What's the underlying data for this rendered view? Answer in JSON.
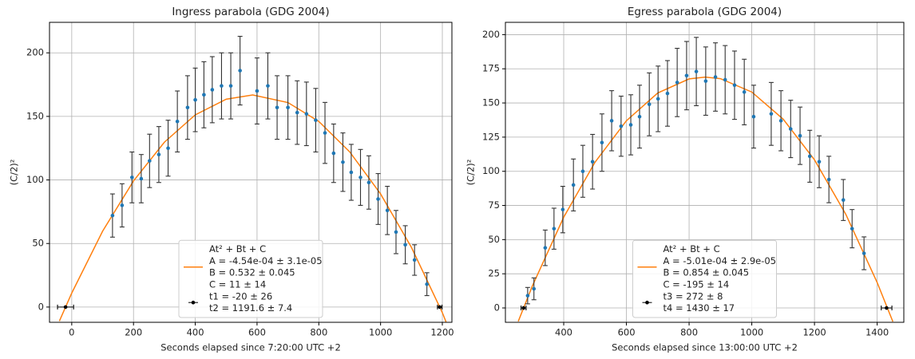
{
  "chart_data": [
    {
      "type": "errorbar",
      "title": "Ingress parabola (GDG 2004)",
      "xlabel": "Seconds elapsed since 7:20:00 UTC +2",
      "ylabel": "(C/2)²",
      "xlim": [
        -72,
        1231
      ],
      "ylim": [
        -12,
        224
      ],
      "xticks": [
        0,
        200,
        400,
        600,
        800,
        1000,
        1200
      ],
      "yticks": [
        0,
        50,
        100,
        150,
        200
      ],
      "grid": true,
      "legend": "lower center",
      "series": [
        {
          "name": [
            "At² + Bt + C",
            "A = -4.54e-04 ± 3.1e-05",
            "B = 0.532 ± 0.045",
            "C = 11 ± 14"
          ],
          "type": "line",
          "color": "#ff7f0e",
          "x": [
            -40,
            0,
            100,
            200,
            300,
            400,
            500,
            586,
            700,
            800,
            900,
            1000,
            1100,
            1200,
            1212
          ],
          "values": [
            -11,
            11,
            59.7,
            99.2,
            129.7,
            151.2,
            163.5,
            166.9,
            160.9,
            146,
            122.1,
            89,
            46.9,
            -4.4,
            -11.7
          ]
        },
        {
          "type": "errorbar",
          "color": "#1f77b4",
          "ecolor": "#333333",
          "x": [
            132,
            163,
            195,
            225,
            252,
            282,
            312,
            342,
            375,
            400,
            428,
            455,
            485,
            515,
            545,
            600,
            635,
            665,
            700,
            730,
            760,
            790,
            820,
            848,
            878,
            905,
            935,
            962,
            992,
            1022,
            1050,
            1080,
            1110,
            1150
          ],
          "values": [
            72,
            80,
            102,
            101,
            115,
            120,
            125,
            146,
            157,
            163,
            167,
            171,
            174,
            174,
            186,
            170,
            174,
            157,
            157,
            153,
            152,
            147,
            137,
            121,
            114,
            106,
            102,
            98,
            85,
            76,
            59,
            49,
            37,
            18
          ],
          "errors": [
            17,
            17,
            20,
            19,
            21,
            22,
            22,
            24,
            25,
            25,
            26,
            26,
            26,
            26,
            27,
            26,
            26,
            25,
            25,
            25,
            25,
            25,
            24,
            23,
            23,
            22,
            22,
            21,
            20,
            19,
            17,
            15,
            12,
            9
          ]
        },
        {
          "name": [
            "t1 = -20 ± 26",
            "t2 = 1191.6 ± 7.4"
          ],
          "type": "xerrorbar",
          "color": "#000000",
          "x": [
            -20,
            1191.6
          ],
          "values": [
            0,
            0
          ],
          "xerrors": [
            26,
            7.4
          ]
        }
      ]
    },
    {
      "type": "errorbar",
      "title": "Egress parabola (GDG 2004)",
      "xlabel": "Seconds elapsed since 13:00:00 UTC +2",
      "ylabel": "(C/2)²",
      "xlim": [
        214,
        1485
      ],
      "ylim": [
        -10.5,
        209
      ],
      "xticks": [
        400,
        600,
        800,
        1000,
        1200,
        1400
      ],
      "yticks": [
        0,
        25,
        50,
        75,
        100,
        125,
        150,
        175,
        200
      ],
      "grid": true,
      "legend": "lower center",
      "series": [
        {
          "name": [
            "At² + Bt + C",
            "A = -5.01e-04 ± 2.9e-05",
            "B = 0.854 ± 0.045",
            "C = -195 ± 14"
          ],
          "type": "line",
          "color": "#ff7f0e",
          "x": [
            255,
            300,
            400,
            500,
            600,
            700,
            800,
            852,
            900,
            1000,
            1100,
            1200,
            1300,
            1400,
            1450
          ],
          "values": [
            -9.8,
            16.1,
            66.4,
            106.7,
            137,
            157.3,
            167.6,
            168.9,
            167.8,
            158,
            138.2,
            108.4,
            68.5,
            18.6,
            -10
          ]
        },
        {
          "type": "errorbar",
          "color": "#1f77b4",
          "ecolor": "#333333",
          "x": [
            285,
            305,
            341,
            369,
            397,
            431,
            461,
            492,
            522,
            553,
            583,
            614,
            642,
            673,
            701,
            731,
            762,
            792,
            823,
            853,
            884,
            915,
            945,
            976,
            1006,
            1062,
            1093,
            1124,
            1154,
            1185,
            1215,
            1246,
            1292,
            1320,
            1358
          ],
          "values": [
            9,
            14,
            44,
            58,
            72,
            90,
            100,
            107,
            121,
            137,
            133,
            134,
            140,
            149,
            153,
            157,
            165,
            170,
            173,
            166,
            169,
            167,
            163,
            158,
            140,
            142,
            137,
            131,
            126,
            111,
            107,
            94,
            79,
            58,
            40
          ],
          "errors": [
            6,
            8,
            13,
            15,
            17,
            19,
            19,
            20,
            21,
            22,
            22,
            22,
            23,
            23,
            24,
            24,
            25,
            25,
            25,
            25,
            25,
            25,
            25,
            24,
            23,
            23,
            22,
            21,
            21,
            19,
            19,
            17,
            15,
            14,
            12
          ]
        },
        {
          "name": [
            "t3 = 272 ± 8",
            "t4 = 1430 ± 17"
          ],
          "type": "xerrorbar",
          "color": "#000000",
          "x": [
            272,
            1430
          ],
          "values": [
            0,
            0
          ],
          "xerrors": [
            8,
            17
          ]
        }
      ]
    }
  ]
}
